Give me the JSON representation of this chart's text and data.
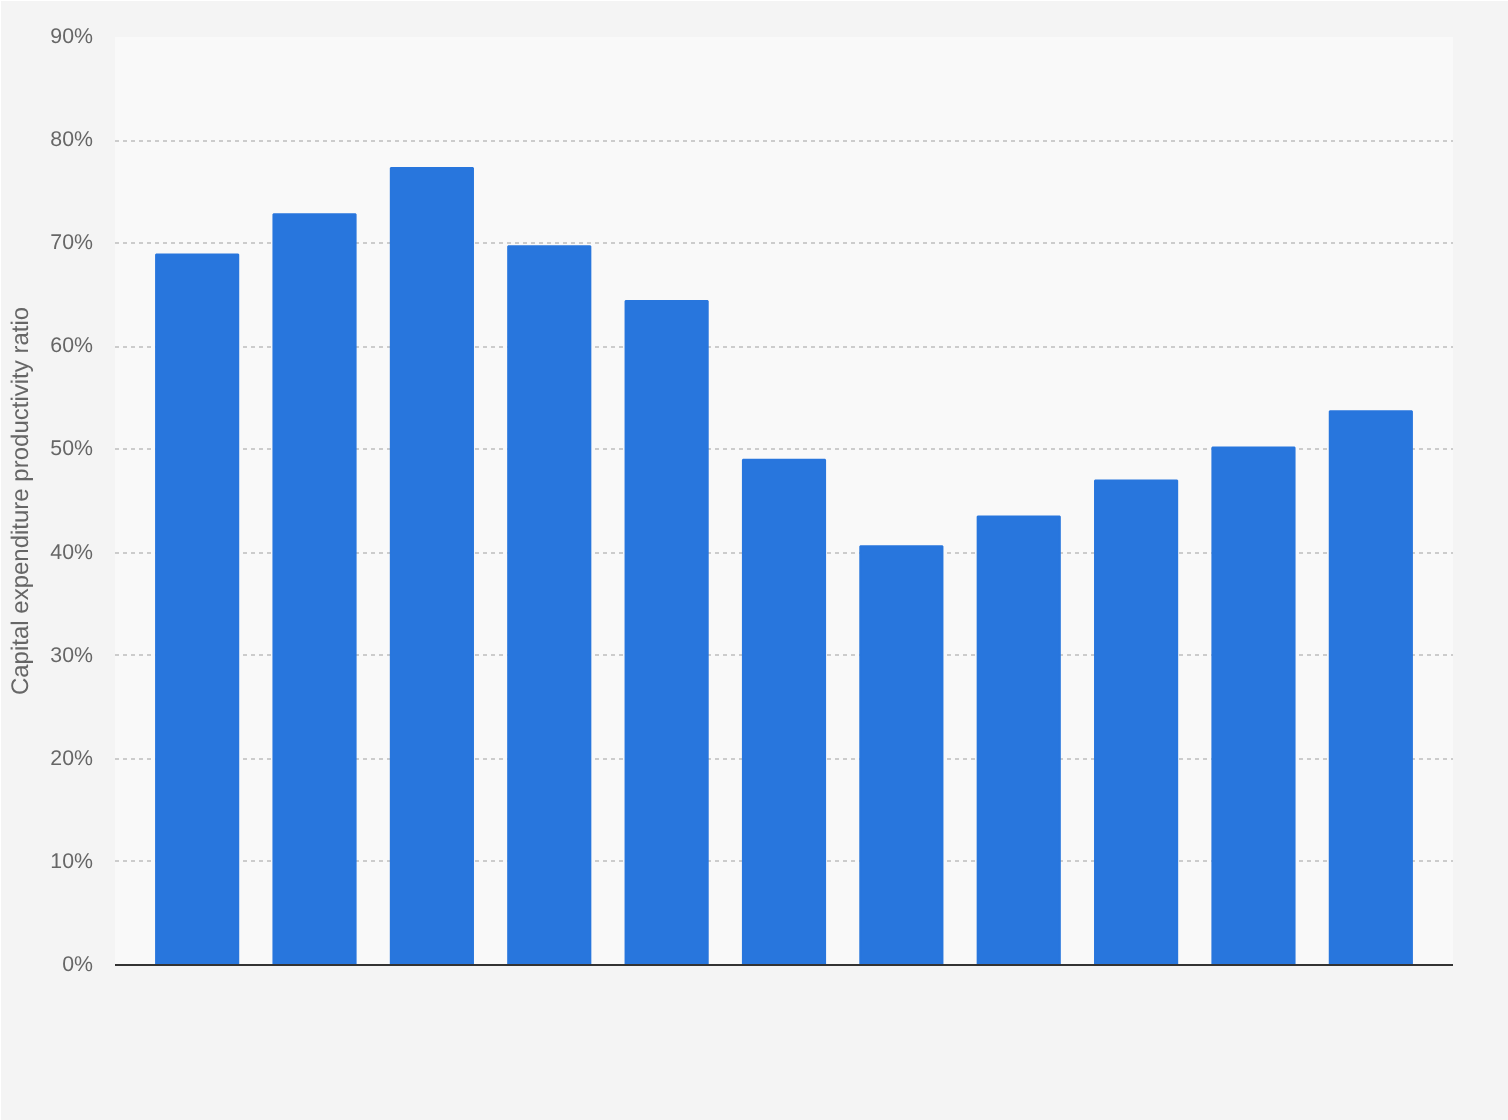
{
  "chart_data": {
    "type": "bar",
    "ylabel": "Capital expenditure productivity ratio",
    "categories": [
      null,
      null,
      null,
      null,
      null,
      null,
      null,
      null,
      null,
      null,
      null
    ],
    "values": [
      68.9,
      72.8,
      77.3,
      69.7,
      64.4,
      49.0,
      40.6,
      43.5,
      47.0,
      50.2,
      53.7
    ],
    "color": "#2876dd",
    "ylim": [
      0,
      90
    ],
    "yticks": [
      {
        "value": 0,
        "label": "0%"
      },
      {
        "value": 10,
        "label": "10%"
      },
      {
        "value": 20,
        "label": "20%"
      },
      {
        "value": 30,
        "label": "30%"
      },
      {
        "value": 40,
        "label": "40%"
      },
      {
        "value": 50,
        "label": "50%"
      },
      {
        "value": 60,
        "label": "60%"
      },
      {
        "value": 70,
        "label": "70%"
      },
      {
        "value": 80,
        "label": "80%"
      },
      {
        "value": 90,
        "label": "90%"
      }
    ],
    "grid": "y"
  }
}
